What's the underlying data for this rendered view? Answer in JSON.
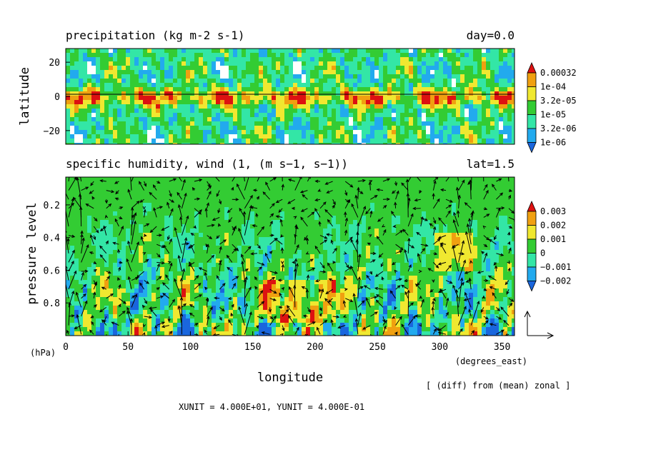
{
  "chart_data": [
    {
      "type": "heatmap",
      "title": "precipitation (kg m-2 s-1)",
      "annotation": "day=0.0",
      "ylabel": "latitude",
      "xlim": [
        0,
        360
      ],
      "ylim": [
        -28,
        28
      ],
      "yticks": [
        "20",
        "0",
        "−20"
      ],
      "ytick_values": [
        20,
        0,
        -20
      ],
      "legend": {
        "placement": "right",
        "levels": [
          "0.00032",
          "1e-04",
          "3.2e-05",
          "1e-05",
          "3.2e-06",
          "1e-06"
        ],
        "colors": [
          "#dd1111",
          "#f0a010",
          "#f0e830",
          "#33cc33",
          "#33e6a6",
          "#22aaee",
          "#1a66dd"
        ]
      }
    },
    {
      "type": "heatmap",
      "title": "specific humidity, wind (1, (m s−1, s−1))",
      "annotation": "lat=1.5",
      "xlabel": "longitude",
      "ylabel": "pressure level",
      "y_unit": "(hPa)",
      "x_unit": "(degrees_east)",
      "xlim": [
        0,
        360
      ],
      "ylim": [
        1.0,
        0.03
      ],
      "xticks": [
        "0",
        "50",
        "100",
        "150",
        "200",
        "250",
        "300",
        "350"
      ],
      "xtick_values": [
        0,
        50,
        100,
        150,
        200,
        250,
        300,
        350
      ],
      "yticks": [
        "0.2",
        "0.4",
        "0.6",
        "0.8"
      ],
      "ytick_values": [
        0.2,
        0.4,
        0.6,
        0.8
      ],
      "legend": {
        "placement": "right",
        "levels": [
          "0.003",
          "0.002",
          "0.001",
          "0",
          "−0.001",
          "−0.002"
        ],
        "colors": [
          "#dd1111",
          "#f0a010",
          "#f0e830",
          "#33cc33",
          "#33e6a6",
          "#22aaee",
          "#1a66dd"
        ]
      }
    }
  ],
  "footer": {
    "note": "[ (diff) from (mean) zonal ]",
    "units": "XUNIT = 4.000E+01, YUNIT = 4.000E-01"
  }
}
